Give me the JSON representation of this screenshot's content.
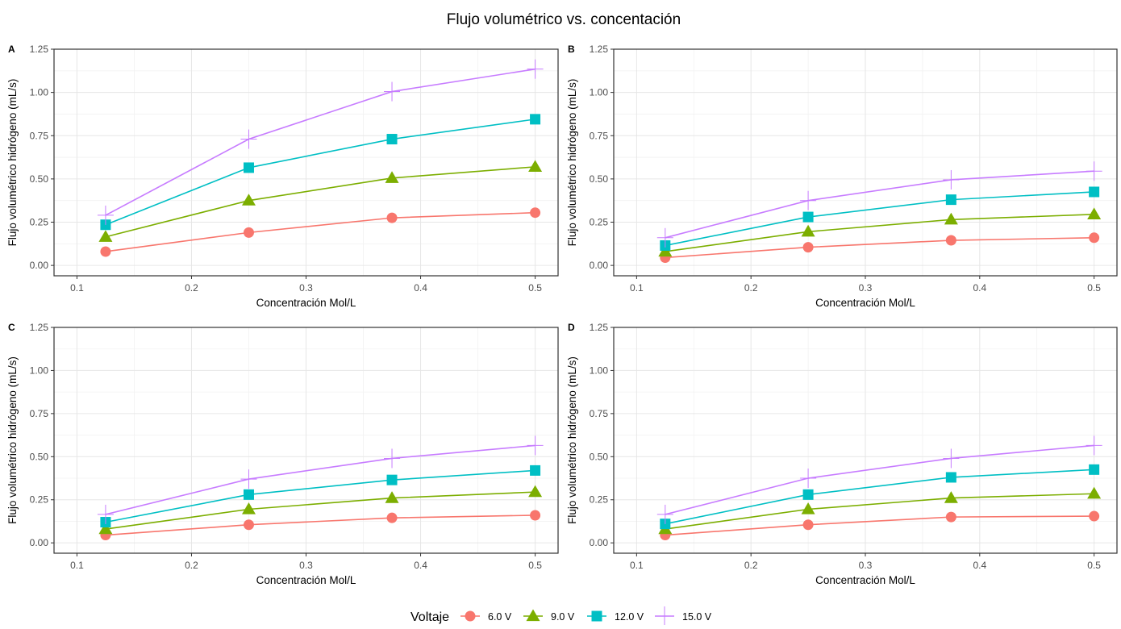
{
  "title": "Flujo volumétrico vs. concentación",
  "legend": {
    "title": "Voltaje",
    "entries": [
      {
        "label": "6.0 V",
        "color": "#F8766D",
        "shape": "circle"
      },
      {
        "label": "9.0 V",
        "color": "#7CAE00",
        "shape": "triangle"
      },
      {
        "label": "12.0 V",
        "color": "#00BFC4",
        "shape": "square"
      },
      {
        "label": "15.0 V",
        "color": "#C77CFF",
        "shape": "plus"
      }
    ]
  },
  "chart_data": [
    {
      "type": "line",
      "panel_label": "A",
      "xlabel": "Concentración Mol/L",
      "ylabel": "Flujo volumétrico hidrógeno (mL/s)",
      "x": [
        0.125,
        0.25,
        0.375,
        0.5
      ],
      "xlim": [
        0.08,
        0.52
      ],
      "ylim": [
        -0.06,
        1.25
      ],
      "xticks": [
        "0.1",
        "0.2",
        "0.3",
        "0.4",
        "0.5"
      ],
      "yticks": [
        "0.00",
        "0.25",
        "0.50",
        "0.75",
        "1.00",
        "1.25"
      ],
      "grid": true,
      "series": [
        {
          "name": "6.0 V",
          "values": [
            0.08,
            0.19,
            0.275,
            0.305
          ]
        },
        {
          "name": "9.0 V",
          "values": [
            0.165,
            0.375,
            0.505,
            0.57
          ]
        },
        {
          "name": "12.0 V",
          "values": [
            0.235,
            0.565,
            0.73,
            0.845
          ]
        },
        {
          "name": "15.0 V",
          "values": [
            0.29,
            0.73,
            1.005,
            1.135
          ]
        }
      ]
    },
    {
      "type": "line",
      "panel_label": "B",
      "xlabel": "Concentración Mol/L",
      "ylabel": "Flujo volumétrico hidrógeno (mL/s)",
      "x": [
        0.125,
        0.25,
        0.375,
        0.5
      ],
      "xlim": [
        0.08,
        0.52
      ],
      "ylim": [
        -0.06,
        1.25
      ],
      "xticks": [
        "0.1",
        "0.2",
        "0.3",
        "0.4",
        "0.5"
      ],
      "yticks": [
        "0.00",
        "0.25",
        "0.50",
        "0.75",
        "1.00",
        "1.25"
      ],
      "grid": true,
      "series": [
        {
          "name": "6.0 V",
          "values": [
            0.045,
            0.105,
            0.145,
            0.16
          ]
        },
        {
          "name": "9.0 V",
          "values": [
            0.08,
            0.195,
            0.265,
            0.295
          ]
        },
        {
          "name": "12.0 V",
          "values": [
            0.115,
            0.28,
            0.38,
            0.425
          ]
        },
        {
          "name": "15.0 V",
          "values": [
            0.16,
            0.375,
            0.495,
            0.545
          ]
        }
      ]
    },
    {
      "type": "line",
      "panel_label": "C",
      "xlabel": "Concentración Mol/L",
      "ylabel": "Flujo volumétrico hidrógeno (mL/s)",
      "x": [
        0.125,
        0.25,
        0.375,
        0.5
      ],
      "xlim": [
        0.08,
        0.52
      ],
      "ylim": [
        -0.06,
        1.25
      ],
      "xticks": [
        "0.1",
        "0.2",
        "0.3",
        "0.4",
        "0.5"
      ],
      "yticks": [
        "0.00",
        "0.25",
        "0.50",
        "0.75",
        "1.00",
        "1.25"
      ],
      "grid": true,
      "series": [
        {
          "name": "6.0 V",
          "values": [
            0.045,
            0.105,
            0.145,
            0.16
          ]
        },
        {
          "name": "9.0 V",
          "values": [
            0.08,
            0.195,
            0.26,
            0.295
          ]
        },
        {
          "name": "12.0 V",
          "values": [
            0.12,
            0.28,
            0.365,
            0.42
          ]
        },
        {
          "name": "15.0 V",
          "values": [
            0.165,
            0.37,
            0.49,
            0.565
          ]
        }
      ]
    },
    {
      "type": "line",
      "panel_label": "D",
      "xlabel": "Concentración Mol/L",
      "ylabel": "Flujo volumétrico hidrógeno (mL/s)",
      "x": [
        0.125,
        0.25,
        0.375,
        0.5
      ],
      "xlim": [
        0.08,
        0.52
      ],
      "ylim": [
        -0.06,
        1.25
      ],
      "xticks": [
        "0.1",
        "0.2",
        "0.3",
        "0.4",
        "0.5"
      ],
      "yticks": [
        "0.00",
        "0.25",
        "0.50",
        "0.75",
        "1.00",
        "1.25"
      ],
      "grid": true,
      "series": [
        {
          "name": "6.0 V",
          "values": [
            0.045,
            0.105,
            0.15,
            0.155
          ]
        },
        {
          "name": "9.0 V",
          "values": [
            0.08,
            0.195,
            0.26,
            0.285
          ]
        },
        {
          "name": "12.0 V",
          "values": [
            0.11,
            0.28,
            0.38,
            0.425
          ]
        },
        {
          "name": "15.0 V",
          "values": [
            0.165,
            0.375,
            0.49,
            0.565
          ]
        }
      ]
    }
  ]
}
